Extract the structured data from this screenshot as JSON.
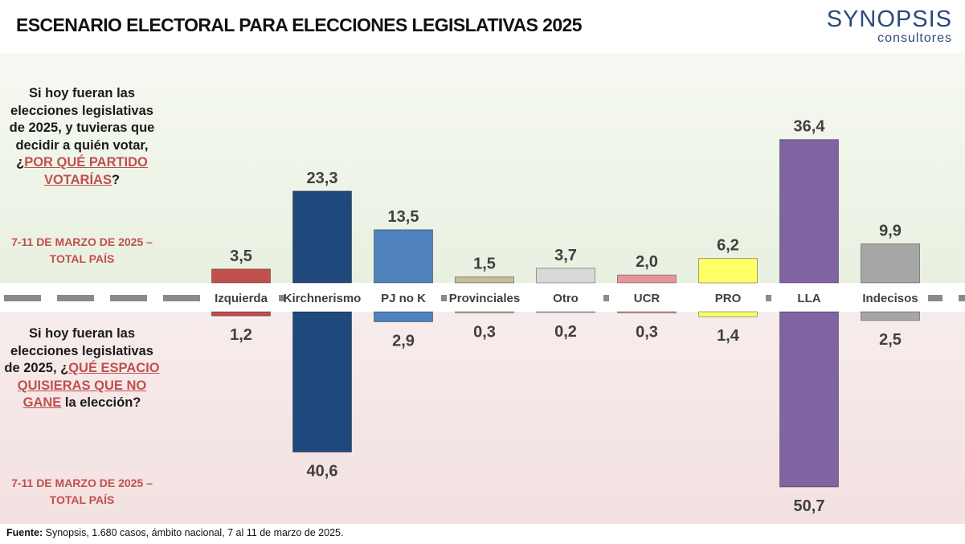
{
  "header": {
    "title": "ESCENARIO ELECTORAL PARA ELECCIONES LEGISLATIVAS 2025",
    "brand_name": "SYNOPSIS",
    "brand_sub": "consultores"
  },
  "questions": {
    "top": {
      "before": "Si hoy fueran las elecciones legislativas de 2025, y tuvieras que decidir a quién votar, ¿",
      "highlight": "POR QUÉ PARTIDO VOTARÍAS",
      "after": "?",
      "date": "7-11 DE MARZO DE 2025 – TOTAL PAÍS"
    },
    "bottom": {
      "before": "Si hoy fueran las elecciones legislativas de 2025, ¿",
      "highlight": "QUÉ ESPACIO QUISIERAS QUE NO GANE",
      "after": " la elección?",
      "date": "7-11 DE MARZO DE 2025 – TOTAL PAÍS"
    }
  },
  "chart_data": {
    "type": "bar",
    "title": "ESCENARIO ELECTORAL PARA ELECCIONES LEGISLATIVAS 2025",
    "categories": [
      "Izquierda",
      "Kirchnerismo",
      "PJ no K",
      "Provinciales",
      "Otro",
      "UCR",
      "PRO",
      "LLA",
      "Indecisos"
    ],
    "colors": [
      "#c0504d",
      "#1f497d",
      "#4f81bd",
      "#c4bd97",
      "#d9d9d9",
      "#e6959b",
      "#ffff66",
      "#8064a2",
      "#a6a6a6"
    ],
    "series": [
      {
        "name": "¿Por qué partido votarías?",
        "direction": "up",
        "values": [
          3.5,
          23.3,
          13.5,
          1.5,
          3.7,
          2.0,
          6.2,
          36.4,
          9.9
        ]
      },
      {
        "name": "¿Qué espacio quisieras que no gane la elección?",
        "direction": "down",
        "values": [
          1.2,
          40.6,
          2.9,
          0.3,
          0.2,
          0.3,
          1.4,
          50.7,
          2.5
        ]
      }
    ],
    "value_labels_up": [
      "3,5",
      "23,3",
      "13,5",
      "1,5",
      "3,7",
      "2,0",
      "6,2",
      "36,4",
      "9,9"
    ],
    "value_labels_down": [
      "1,2",
      "40,6",
      "2,9",
      "0,3",
      "0,2",
      "0,3",
      "1,4",
      "50,7",
      "2,5"
    ],
    "unit": "%"
  },
  "footer": {
    "label": "Fuente:",
    "text": " Synopsis, 1.680 casos, ámbito nacional, 7 al 11 de marzo de 2025."
  }
}
